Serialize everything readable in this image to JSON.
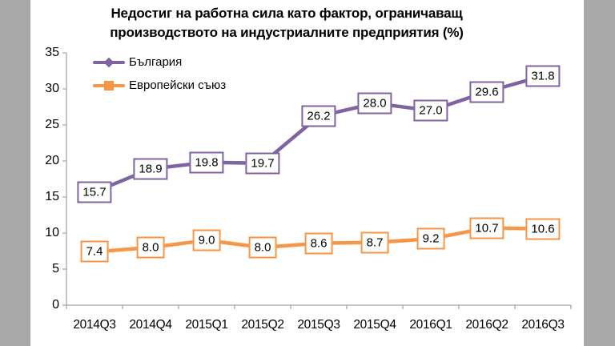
{
  "page": {
    "background_color": "#a9a9a9",
    "canvas_color": "#ffffff",
    "axis_color": "#a6a6a6",
    "text_color": "#000000"
  },
  "chart_data": {
    "type": "line",
    "title": "Недостиг на работна сила като фактор, ограничаващ производството на индустриалните предприятия (%)",
    "title_lines": [
      "Недостиг на работна сила като фактор, ограничаващ",
      "производството на индустриалните предприятия (%)"
    ],
    "categories": [
      "2014Q3",
      "2014Q4",
      "2015Q1",
      "2015Q2",
      "2015Q3",
      "2015Q4",
      "2016Q1",
      "2016Q2",
      "2016Q3"
    ],
    "series": [
      {
        "name": "България",
        "values": [
          15.7,
          18.9,
          19.8,
          19.7,
          26.2,
          28.0,
          27.0,
          29.6,
          31.8
        ],
        "color": "#8064a2",
        "marker": "diamond"
      },
      {
        "name": "Европейски съюз",
        "values": [
          7.4,
          8.0,
          9.0,
          8.0,
          8.6,
          8.7,
          9.2,
          10.7,
          10.6
        ],
        "color": "#f79646",
        "marker": "square"
      }
    ],
    "ylim": [
      0,
      35
    ],
    "yticks": [
      0,
      5,
      10,
      15,
      20,
      25,
      30,
      35
    ],
    "grid": false,
    "legend_position": "top-left",
    "data_labels": "boxed values with one decimal, centered on points"
  }
}
